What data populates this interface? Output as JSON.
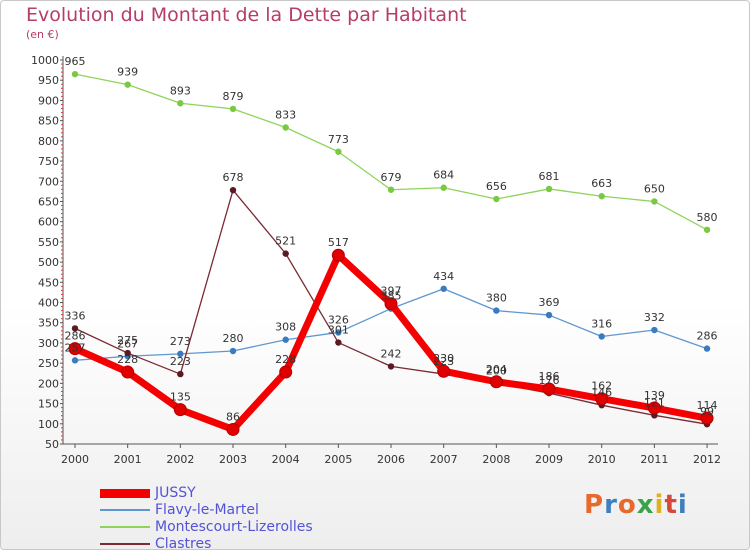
{
  "title": "Evolution du Montant de la Dette par Habitant",
  "subtitle": "(en €)",
  "logo": "Proxiti",
  "logo_colors": [
    "#e8692c",
    "#3d7fc1",
    "#e8692c",
    "#3aa34a",
    "#e0b020",
    "#d8483a",
    "#3d7fc1"
  ],
  "chart_data": {
    "type": "line",
    "x": [
      "2000",
      "2001",
      "2002",
      "2003",
      "2004",
      "2005",
      "2006",
      "2007",
      "2008",
      "2009",
      "2010",
      "2011",
      "2012"
    ],
    "ylim": [
      50,
      1000
    ],
    "yticks": [
      50,
      100,
      150,
      200,
      250,
      300,
      350,
      400,
      450,
      500,
      550,
      600,
      650,
      700,
      750,
      800,
      850,
      900,
      950,
      1000
    ],
    "grid": false,
    "legend_position": "bottom-left",
    "series": [
      {
        "name": "Montescourt-Lizerolles",
        "color": "#8ed45a",
        "marker": "#7ac943",
        "width": 1.3,
        "radius": 3.2,
        "values": [
          965,
          939,
          893,
          879,
          833,
          773,
          679,
          684,
          656,
          681,
          663,
          650,
          580
        ],
        "labels": [
          "965",
          "939",
          "893",
          "879",
          "833",
          "773",
          "679",
          "684",
          "656",
          "681",
          "663",
          "650",
          "580"
        ]
      },
      {
        "name": "Flavy-le-Martel",
        "color": "#5f97cf",
        "marker": "#3a7bbf",
        "width": 1.3,
        "radius": 3.2,
        "values": [
          257,
          267,
          273,
          280,
          308,
          326,
          385,
          434,
          380,
          369,
          316,
          332,
          286
        ],
        "labels": [
          "257",
          "267",
          "273",
          "280",
          "308",
          "326",
          "385",
          "434",
          "380",
          "369",
          "316",
          "332",
          "286"
        ]
      },
      {
        "name": "Clastres",
        "color": "#7a2a33",
        "marker": "#5a1a22",
        "width": 1.3,
        "radius": 3.2,
        "values": [
          336,
          275,
          223,
          678,
          521,
          301,
          242,
          223,
          200,
          176,
          146,
          121,
          99
        ],
        "labels": [
          "336",
          "275",
          "223",
          "678",
          "521",
          "301",
          "242",
          "223",
          "200",
          "176",
          "146",
          "121",
          "99"
        ]
      },
      {
        "name": "JUSSY",
        "color": "#f40000",
        "marker": "#e00000",
        "width": 7,
        "radius": 6,
        "values": [
          286,
          228,
          135,
          86,
          228,
          517,
          397,
          230,
          204,
          186,
          162,
          139,
          114
        ],
        "labels": [
          "286",
          "228",
          "135",
          "86",
          "228",
          "517",
          "397",
          "230",
          "204",
          "186",
          "162",
          "139",
          "114"
        ]
      }
    ],
    "legend": [
      {
        "name": "JUSSY",
        "color": "#f40000",
        "width": 9
      },
      {
        "name": "Flavy-le-Martel",
        "color": "#5f97cf",
        "width": 2
      },
      {
        "name": "Montescourt-Lizerolles",
        "color": "#8ed45a",
        "width": 2
      },
      {
        "name": "Clastres",
        "color": "#7a2a33",
        "width": 2
      }
    ]
  }
}
